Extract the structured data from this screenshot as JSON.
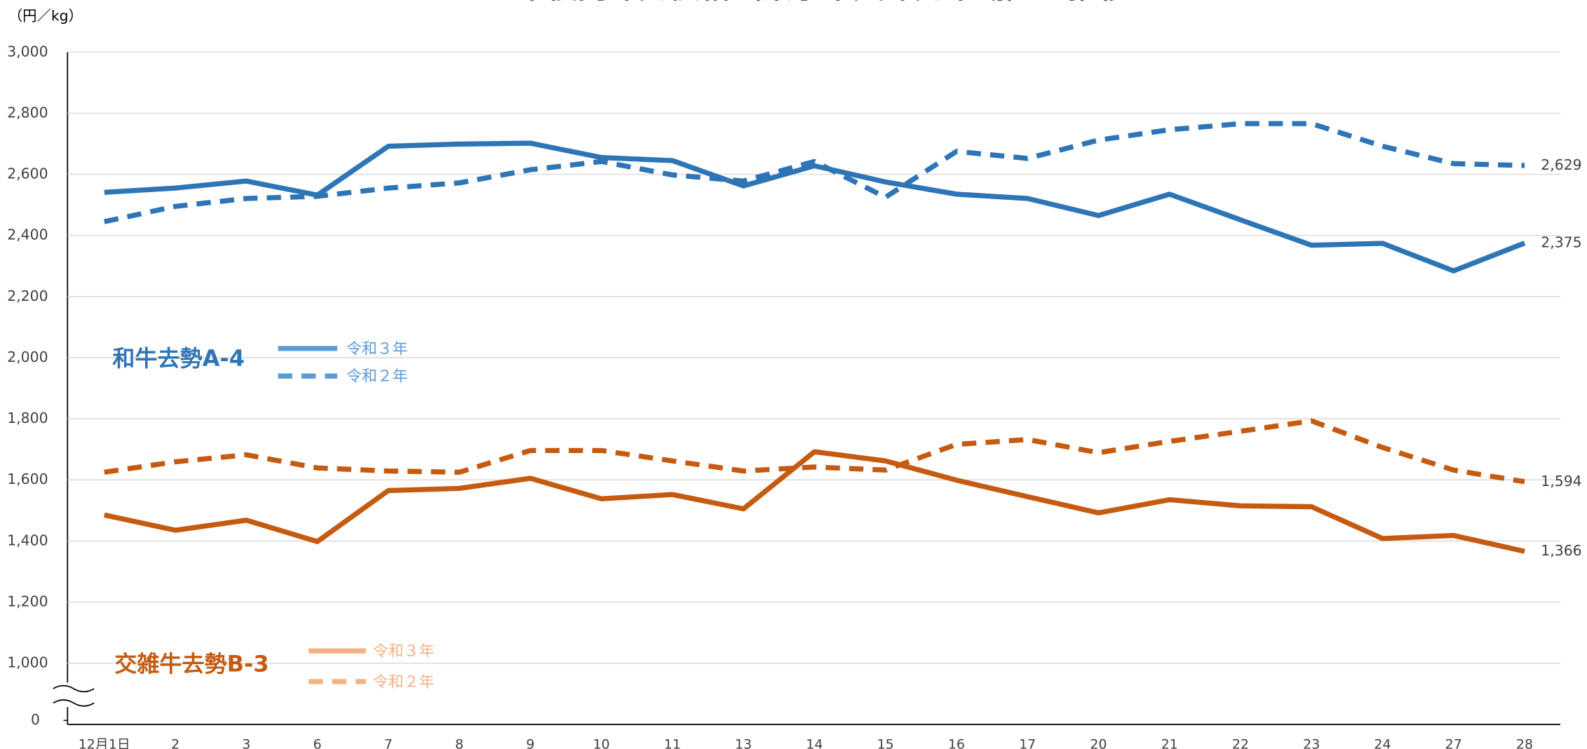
{
  "chart_data": {
    "type": "line",
    "title": "牛枝肉卸売価格（東京中央卸売市場）の推移",
    "y_unit": "（円／kg）",
    "categories": [
      "12月1日",
      "2",
      "3",
      "6",
      "7",
      "8",
      "9",
      "10",
      "11",
      "13",
      "14",
      "15",
      "16",
      "17",
      "20",
      "21",
      "22",
      "23",
      "24",
      "27",
      "28"
    ],
    "ylim": [
      0,
      3000
    ],
    "y_break": [
      0,
      1000
    ],
    "yticks": [
      0,
      {
        "value": 1000,
        "label": "1,000"
      },
      {
        "value": 1200,
        "label": "1,200"
      },
      {
        "value": 1400,
        "label": "1,400"
      },
      {
        "value": 1600,
        "label": "1,600"
      },
      {
        "value": 1800,
        "label": "1,800"
      },
      {
        "value": 2000,
        "label": "2,000"
      },
      {
        "value": 2200,
        "label": "2,200"
      },
      {
        "value": 2400,
        "label": "2,400"
      },
      {
        "value": 2600,
        "label": "2,600"
      },
      {
        "value": 2800,
        "label": "2,800"
      },
      {
        "value": 3000,
        "label": "3,000"
      }
    ],
    "grid": true,
    "groups": [
      {
        "name": "和牛去勢A-4",
        "color": "#2e75b6",
        "legend_color": "#5b9bd5"
      },
      {
        "name": "交雑牛去勢B-3",
        "color": "#c55a11",
        "legend_color": "#f4b183"
      }
    ],
    "series": [
      {
        "name": "令和３年",
        "group": 0,
        "dashed": false,
        "values": [
          2541,
          2555,
          2578,
          2532,
          2692,
          2699,
          2702,
          2655,
          2645,
          2562,
          2628,
          2575,
          2535,
          2521,
          2465,
          2535,
          2451,
          2368,
          2374,
          2284,
          2375
        ],
        "value_labels": [
          null,
          null,
          null,
          null,
          null,
          null,
          null,
          null,
          null,
          null,
          null,
          null,
          null,
          null,
          null,
          null,
          null,
          null,
          null,
          null,
          "2,375"
        ]
      },
      {
        "name": "令和２年",
        "group": 0,
        "dashed": true,
        "values": [
          2445,
          2495,
          2521,
          2528,
          2555,
          2572,
          2615,
          2642,
          2598,
          2578,
          2642,
          2525,
          2675,
          2652,
          2712,
          2746,
          2766,
          2766,
          2692,
          2635,
          2629
        ],
        "value_labels": [
          null,
          null,
          null,
          null,
          null,
          null,
          null,
          null,
          null,
          null,
          null,
          null,
          null,
          null,
          null,
          null,
          null,
          null,
          null,
          null,
          "2,629"
        ]
      },
      {
        "name": "令和３年",
        "group": 1,
        "dashed": false,
        "values": [
          1485,
          1435,
          1468,
          1398,
          1565,
          1572,
          1605,
          1538,
          1552,
          1505,
          1692,
          1662,
          1599,
          1545,
          1492,
          1535,
          1515,
          1512,
          1408,
          1418,
          1366
        ],
        "value_labels": [
          null,
          null,
          null,
          null,
          null,
          null,
          null,
          null,
          null,
          null,
          null,
          null,
          null,
          null,
          null,
          null,
          null,
          null,
          null,
          null,
          "1,366"
        ]
      },
      {
        "name": "令和２年",
        "group": 1,
        "dashed": true,
        "values": [
          1625,
          1659,
          1682,
          1639,
          1629,
          1625,
          1696,
          1696,
          1662,
          1629,
          1642,
          1632,
          1716,
          1732,
          1689,
          1726,
          1759,
          1793,
          1706,
          1632,
          1594
        ],
        "value_labels": [
          null,
          null,
          null,
          null,
          null,
          null,
          null,
          null,
          null,
          null,
          null,
          null,
          null,
          null,
          null,
          null,
          null,
          null,
          null,
          null,
          "1,594"
        ]
      }
    ]
  }
}
